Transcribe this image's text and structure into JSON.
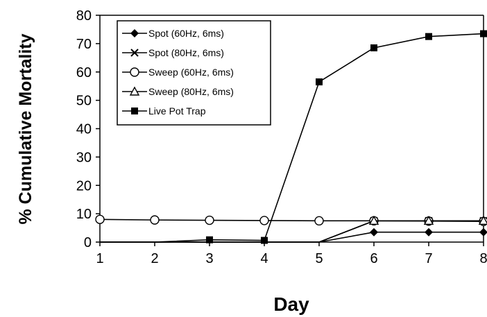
{
  "chart_data": {
    "type": "line",
    "title": "",
    "xlabel": "Day",
    "ylabel": "% Cumulative Mortality",
    "x": [
      1,
      2,
      3,
      4,
      5,
      6,
      7,
      8
    ],
    "xlim": [
      1,
      8
    ],
    "ylim": [
      0,
      80
    ],
    "yticks": [
      0,
      10,
      20,
      30,
      40,
      50,
      60,
      70,
      80
    ],
    "grid": false,
    "legend_position": "top-left",
    "series": [
      {
        "name": "Spot (60Hz, 6ms)",
        "marker": "diamond",
        "color": "#000000",
        "values": [
          0,
          0,
          0,
          0,
          0,
          3.5,
          3.5,
          3.5
        ]
      },
      {
        "name": "Spot (80Hz, 6ms)",
        "marker": "x",
        "color": "#000000",
        "values": [
          0,
          0,
          0,
          0,
          0,
          7.5,
          7.5,
          7.5
        ]
      },
      {
        "name": "Sweep (60Hz, 6ms)",
        "marker": "circle-open",
        "color": "#000000",
        "values": [
          8,
          7.8,
          7.7,
          7.6,
          7.5,
          7.5,
          7.4,
          7.3
        ]
      },
      {
        "name": "Sweep (80Hz, 6ms)",
        "marker": "triangle-open",
        "color": "#000000",
        "values": [
          0,
          0,
          0,
          0,
          0,
          7.5,
          7.5,
          7.5
        ]
      },
      {
        "name": "Live Pot Trap",
        "marker": "square",
        "color": "#000000",
        "values": [
          0,
          0,
          0.8,
          0.6,
          56.5,
          68.5,
          72.5,
          73.5
        ]
      }
    ]
  }
}
